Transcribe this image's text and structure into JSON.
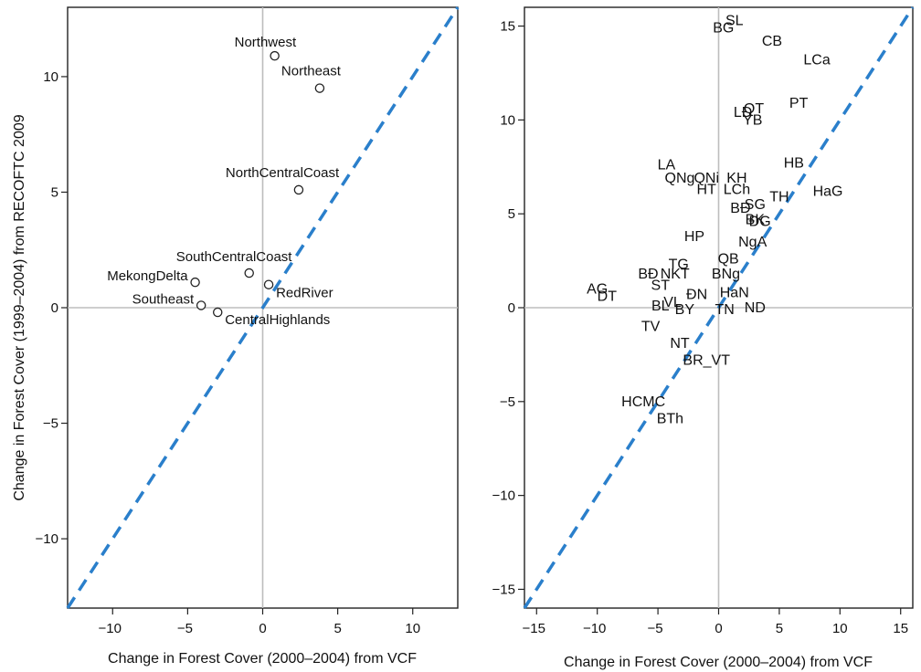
{
  "chart_data": [
    {
      "type": "scatter",
      "xlabel": "Change in Forest Cover (2000–2004) from VCF",
      "ylabel": "Change in Forest Cover (1999–2004) from RECOFTC 2009",
      "xlim": [
        -13,
        13
      ],
      "ylim": [
        -13,
        13
      ],
      "xticks": [
        -10,
        -5,
        0,
        5,
        10
      ],
      "yticks": [
        10,
        5,
        0,
        -5,
        -10
      ],
      "reference_lines": [
        "x=0",
        "y=0"
      ],
      "identity_line": "dashed, y = x",
      "points": [
        {
          "label": "Northwest",
          "x": 0.8,
          "y": 10.9
        },
        {
          "label": "Northeast",
          "x": 3.8,
          "y": 9.5
        },
        {
          "label": "NorthCentralCoast",
          "x": 2.4,
          "y": 5.1
        },
        {
          "label": "SouthCentralCoast",
          "x": -0.9,
          "y": 1.5
        },
        {
          "label": "MekongDelta",
          "x": -4.5,
          "y": 1.1
        },
        {
          "label": "RedRiver",
          "x": 0.4,
          "y": 1.0
        },
        {
          "label": "Southeast",
          "x": -4.1,
          "y": 0.1
        },
        {
          "label": "CentralHighlands",
          "x": -3.0,
          "y": -0.2
        }
      ]
    },
    {
      "type": "scatter",
      "xlabel": "Change in Forest Cover (2000–2004) from VCF",
      "ylabel": "",
      "xlim": [
        -16,
        16
      ],
      "ylim": [
        -16,
        16
      ],
      "xticks": [
        -15,
        -10,
        -5,
        0,
        5,
        10,
        15
      ],
      "yticks": [
        15,
        10,
        5,
        0,
        -5,
        -10,
        -15
      ],
      "reference_lines": [
        "x=0",
        "y=0"
      ],
      "identity_line": "dashed, y = x",
      "points": [
        {
          "label": "SL",
          "x": 1.3,
          "y": 15.3
        },
        {
          "label": "BG",
          "x": 0.4,
          "y": 14.9
        },
        {
          "label": "CB",
          "x": 4.4,
          "y": 14.2
        },
        {
          "label": "LCa",
          "x": 8.1,
          "y": 13.2
        },
        {
          "label": "PT",
          "x": 6.6,
          "y": 10.9
        },
        {
          "label": "QT",
          "x": 2.9,
          "y": 10.6
        },
        {
          "label": "LĐ",
          "x": 2.0,
          "y": 10.4
        },
        {
          "label": "YB",
          "x": 2.8,
          "y": 10.0
        },
        {
          "label": "HB",
          "x": 6.2,
          "y": 7.7
        },
        {
          "label": "LA",
          "x": -4.3,
          "y": 7.6
        },
        {
          "label": "QNg",
          "x": -3.2,
          "y": 6.9
        },
        {
          "label": "QNi",
          "x": -1.0,
          "y": 6.9
        },
        {
          "label": "KH",
          "x": 1.5,
          "y": 6.9
        },
        {
          "label": "HaG",
          "x": 9.0,
          "y": 6.2
        },
        {
          "label": "HT",
          "x": -1.0,
          "y": 6.3
        },
        {
          "label": "LCh",
          "x": 1.5,
          "y": 6.3
        },
        {
          "label": "TH",
          "x": 5.0,
          "y": 5.9
        },
        {
          "label": "BĐ",
          "x": 1.8,
          "y": 5.3
        },
        {
          "label": "SG",
          "x": 3.0,
          "y": 5.5
        },
        {
          "label": "BK",
          "x": 3.0,
          "y": 4.7
        },
        {
          "label": "ĐG",
          "x": 3.4,
          "y": 4.6
        },
        {
          "label": "HP",
          "x": -2.0,
          "y": 3.8
        },
        {
          "label": "NgA",
          "x": 2.8,
          "y": 3.5
        },
        {
          "label": "QB",
          "x": 0.8,
          "y": 2.6
        },
        {
          "label": "TG",
          "x": -3.3,
          "y": 2.3
        },
        {
          "label": "BĐ",
          "x": -5.8,
          "y": 1.8
        },
        {
          "label": "NKT",
          "x": -3.6,
          "y": 1.8
        },
        {
          "label": "BNg",
          "x": 0.6,
          "y": 1.8
        },
        {
          "label": "ST",
          "x": -4.8,
          "y": 1.2
        },
        {
          "label": "AG",
          "x": -10.0,
          "y": 1.0
        },
        {
          "label": "DT",
          "x": -9.2,
          "y": 0.6
        },
        {
          "label": "ĐN",
          "x": -1.8,
          "y": 0.7
        },
        {
          "label": "HaN",
          "x": 1.3,
          "y": 0.8
        },
        {
          "label": "BL",
          "x": -4.8,
          "y": 0.1
        },
        {
          "label": "VL",
          "x": -3.8,
          "y": 0.3
        },
        {
          "label": "BY",
          "x": -2.8,
          "y": -0.1
        },
        {
          "label": "TN",
          "x": 0.5,
          "y": -0.1
        },
        {
          "label": "ND",
          "x": 3.0,
          "y": 0.0
        },
        {
          "label": "TV",
          "x": -5.6,
          "y": -1.0
        },
        {
          "label": "NT",
          "x": -3.2,
          "y": -1.9
        },
        {
          "label": "BR_VT",
          "x": -1.0,
          "y": -2.8
        },
        {
          "label": "HCMC",
          "x": -6.2,
          "y": -5.0
        },
        {
          "label": "BTh",
          "x": -4.0,
          "y": -5.9
        }
      ]
    }
  ]
}
